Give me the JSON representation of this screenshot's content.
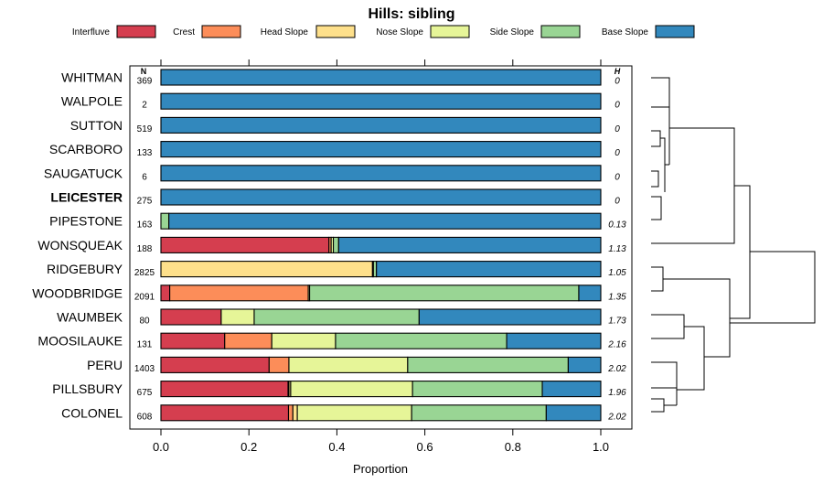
{
  "chart_data": {
    "type": "bar",
    "stacked": true,
    "orientation": "horizontal",
    "title": "Hills: sibling",
    "xlabel": "Proportion",
    "xlim": [
      0,
      1
    ],
    "xticks": [
      "0.0",
      "0.2",
      "0.4",
      "0.6",
      "0.8",
      "1.0"
    ],
    "n_header": "N",
    "h_header": "H",
    "legend": [
      {
        "name": "Interfluve",
        "color": "#d53e4f"
      },
      {
        "name": "Crest",
        "color": "#fc8d59"
      },
      {
        "name": "Head Slope",
        "color": "#fee08b"
      },
      {
        "name": "Nose Slope",
        "color": "#e6f598"
      },
      {
        "name": "Side Slope",
        "color": "#99d594"
      },
      {
        "name": "Base Slope",
        "color": "#3288bd"
      }
    ],
    "rows": [
      {
        "label": "WHITMAN",
        "n": "369",
        "h": "0",
        "bold": false,
        "values": [
          0,
          0,
          0,
          0,
          0,
          1.0
        ]
      },
      {
        "label": "WALPOLE",
        "n": "2",
        "h": "0",
        "bold": false,
        "values": [
          0,
          0,
          0,
          0,
          0,
          1.0
        ]
      },
      {
        "label": "SUTTON",
        "n": "519",
        "h": "0",
        "bold": false,
        "values": [
          0,
          0,
          0,
          0,
          0,
          1.0
        ]
      },
      {
        "label": "SCARBORO",
        "n": "133",
        "h": "0",
        "bold": false,
        "values": [
          0,
          0,
          0,
          0,
          0,
          1.0
        ]
      },
      {
        "label": "SAUGATUCK",
        "n": "6",
        "h": "0",
        "bold": false,
        "values": [
          0,
          0,
          0,
          0,
          0,
          1.0
        ]
      },
      {
        "label": "LEICESTER",
        "n": "275",
        "h": "0",
        "bold": true,
        "values": [
          0,
          0,
          0,
          0,
          0,
          1.0
        ]
      },
      {
        "label": "PIPESTONE",
        "n": "163",
        "h": "0.13",
        "bold": false,
        "values": [
          0,
          0,
          0,
          0,
          0.018,
          0.982
        ]
      },
      {
        "label": "WONSQUEAK",
        "n": "188",
        "h": "1.13",
        "bold": false,
        "values": [
          0.382,
          0.005,
          0,
          0.005,
          0.012,
          0.596
        ]
      },
      {
        "label": "RIDGEBURY",
        "n": "2825",
        "h": "1.05",
        "bold": false,
        "values": [
          0,
          0,
          0.481,
          0.002,
          0.007,
          0.51
        ]
      },
      {
        "label": "WOODBRIDGE",
        "n": "2091",
        "h": "1.35",
        "bold": false,
        "values": [
          0.02,
          0.315,
          0,
          0.003,
          0.612,
          0.05
        ]
      },
      {
        "label": "WAUMBEK",
        "n": "80",
        "h": "1.73",
        "bold": false,
        "values": [
          0.137,
          0,
          0,
          0.075,
          0.375,
          0.413
        ]
      },
      {
        "label": "MOOSILAUKE",
        "n": "131",
        "h": "2.16",
        "bold": false,
        "values": [
          0.145,
          0.107,
          0,
          0.145,
          0.389,
          0.214
        ]
      },
      {
        "label": "PERU",
        "n": "1403",
        "h": "2.02",
        "bold": false,
        "values": [
          0.246,
          0.045,
          0,
          0.27,
          0.365,
          0.074
        ]
      },
      {
        "label": "PILLSBURY",
        "n": "675",
        "h": "1.96",
        "bold": false,
        "values": [
          0.289,
          0.002,
          0.004,
          0.277,
          0.295,
          0.133
        ]
      },
      {
        "label": "COLONEL",
        "n": "608",
        "h": "2.02",
        "bold": false,
        "values": [
          0.29,
          0.01,
          0.01,
          0.26,
          0.306,
          0.124
        ]
      }
    ]
  }
}
